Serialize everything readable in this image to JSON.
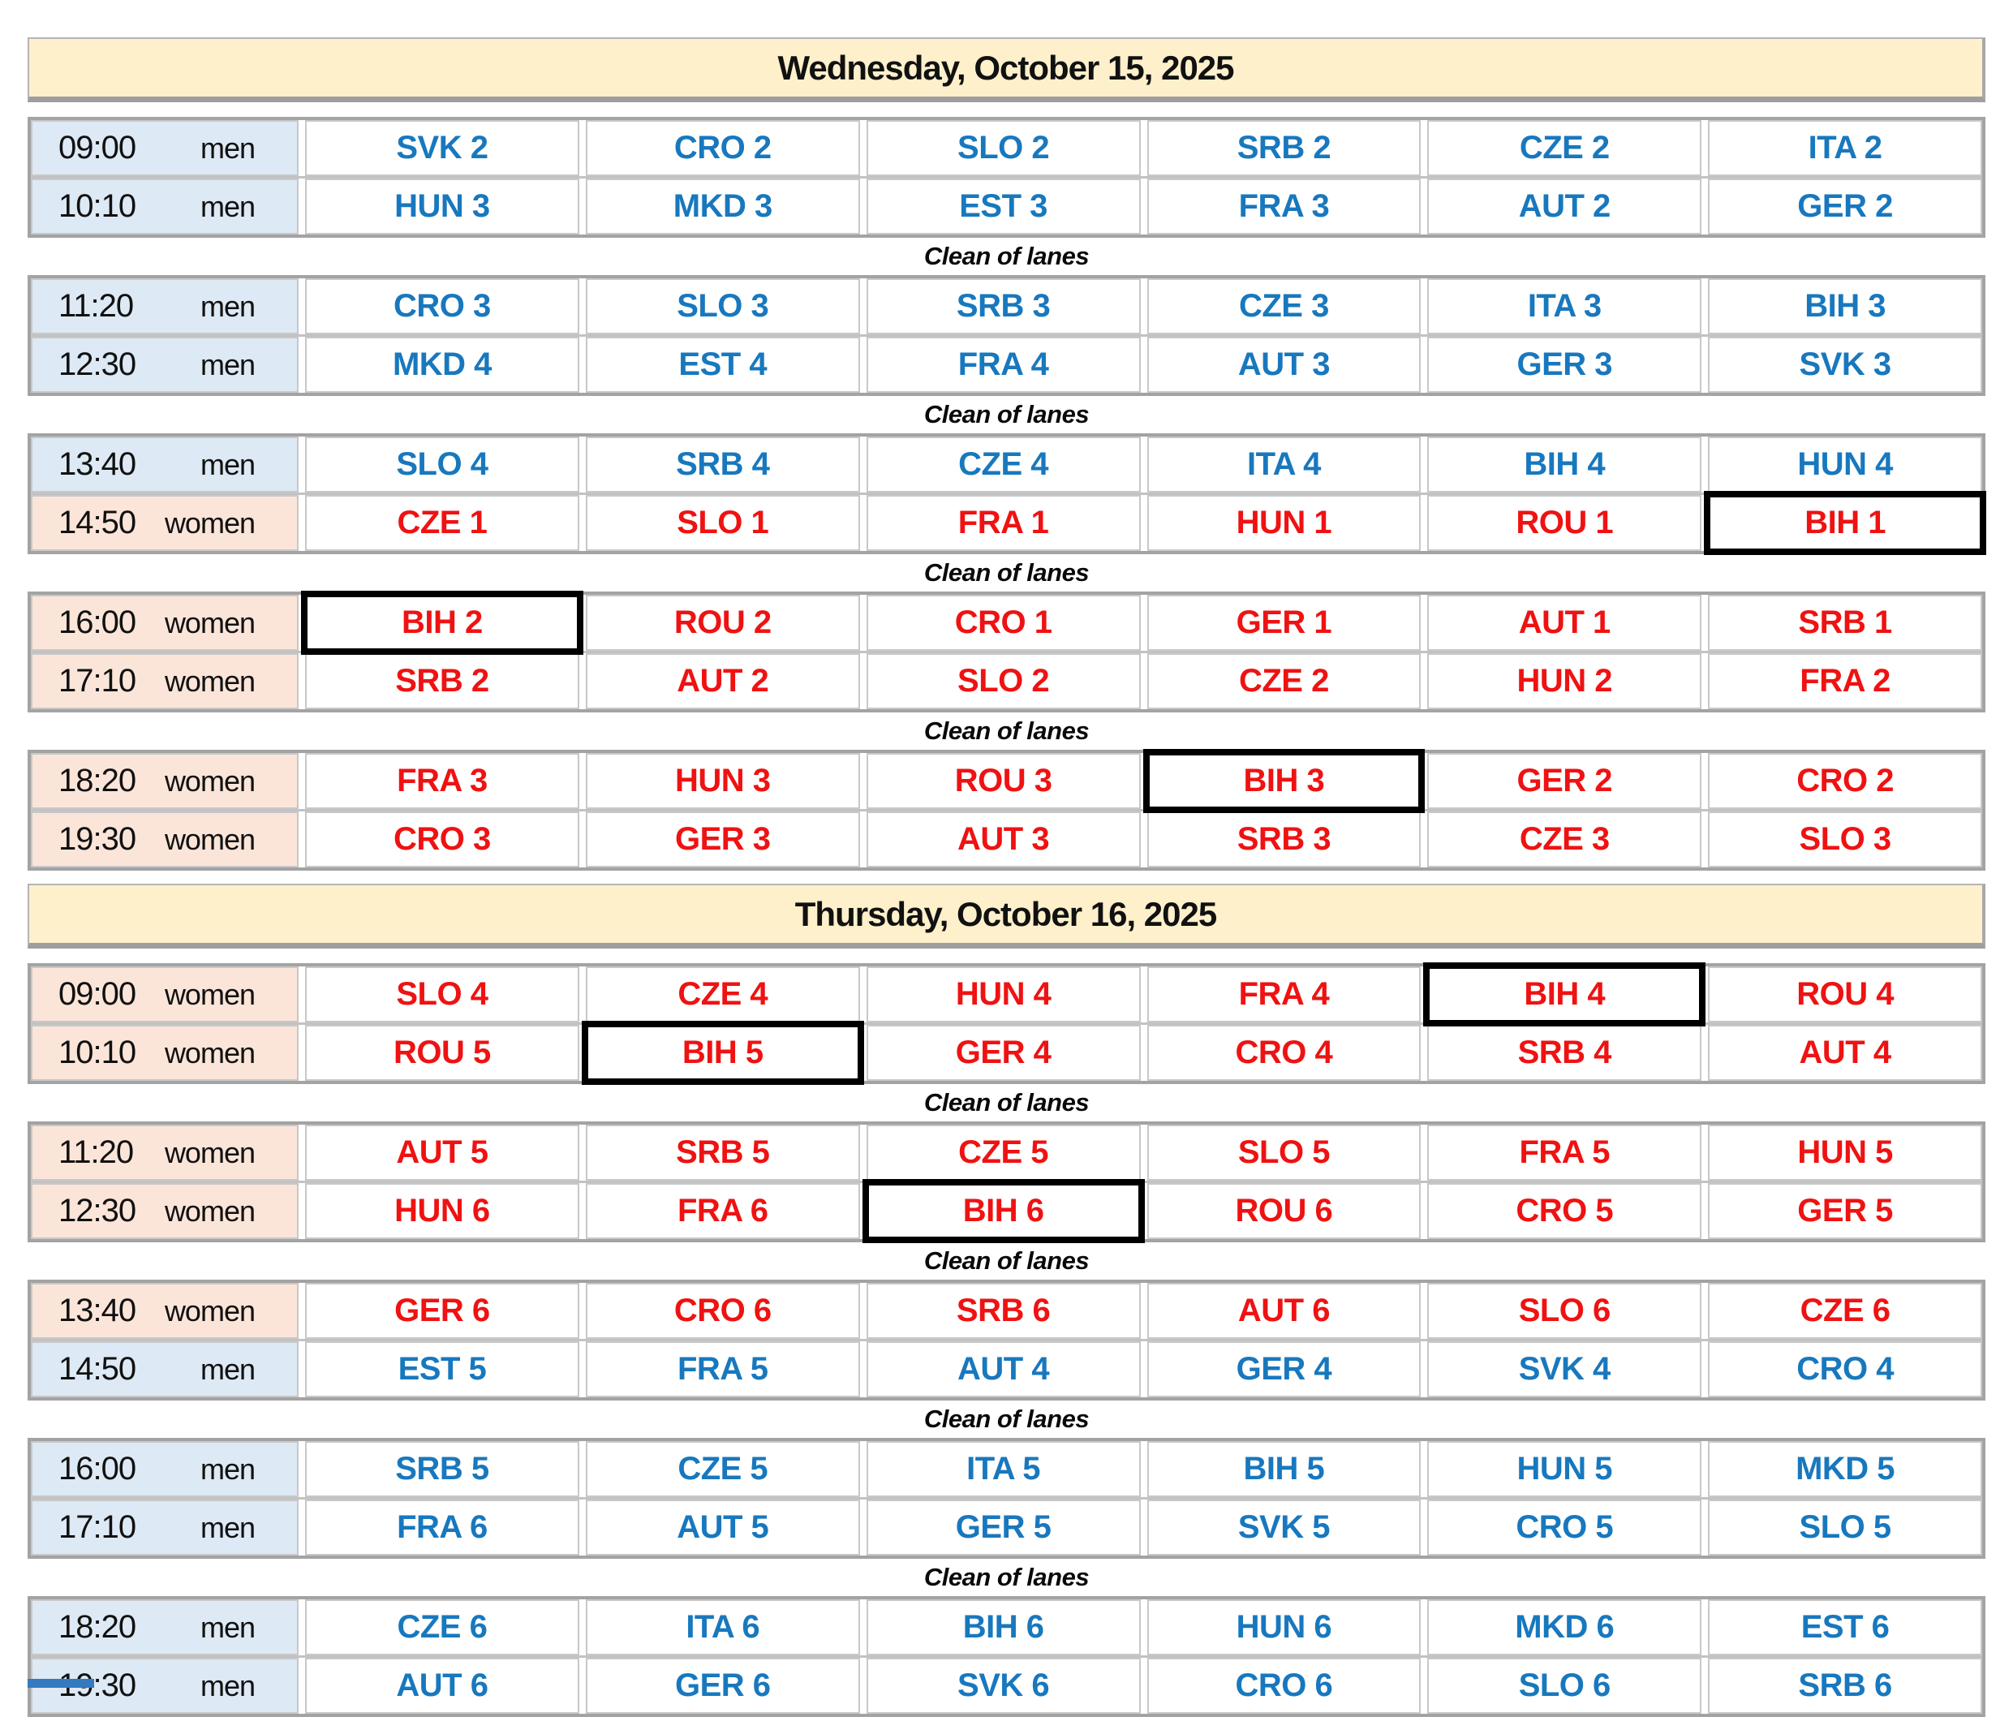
{
  "colors": {
    "header_bg": "#fdf0cb",
    "men_row_bg": "#dde9f4",
    "women_row_bg": "#fbe5d9",
    "men_text": "#1878be",
    "women_text": "#ef1212",
    "grid_border": "#c8c8c8",
    "block_border": "#a3a3a3",
    "highlight_border": "#000000",
    "partial_strip": "#3579bf"
  },
  "separator_label": "Clean of lanes",
  "days": [
    {
      "title": "Wednesday, October 15, 2025",
      "blocks": [
        {
          "rows": [
            {
              "time": "09:00",
              "gender": "men",
              "teams": [
                "SVK 2",
                "CRO 2",
                "SLO 2",
                "SRB 2",
                "CZE 2",
                "ITA 2"
              ],
              "highlights": []
            },
            {
              "time": "10:10",
              "gender": "men",
              "teams": [
                "HUN 3",
                "MKD 3",
                "EST 3",
                "FRA 3",
                "AUT 2",
                "GER 2"
              ],
              "highlights": []
            }
          ],
          "separator_after": true
        },
        {
          "rows": [
            {
              "time": "11:20",
              "gender": "men",
              "teams": [
                "CRO 3",
                "SLO 3",
                "SRB 3",
                "CZE 3",
                "ITA 3",
                "BIH 3"
              ],
              "highlights": []
            },
            {
              "time": "12:30",
              "gender": "men",
              "teams": [
                "MKD 4",
                "EST 4",
                "FRA 4",
                "AUT 3",
                "GER 3",
                "SVK 3"
              ],
              "highlights": []
            }
          ],
          "separator_after": true
        },
        {
          "rows": [
            {
              "time": "13:40",
              "gender": "men",
              "teams": [
                "SLO 4",
                "SRB 4",
                "CZE 4",
                "ITA 4",
                "BIH 4",
                "HUN 4"
              ],
              "highlights": []
            },
            {
              "time": "14:50",
              "gender": "women",
              "teams": [
                "CZE 1",
                "SLO 1",
                "FRA 1",
                "HUN 1",
                "ROU 1",
                "BIH 1"
              ],
              "highlights": [
                5
              ]
            }
          ],
          "separator_after": true
        },
        {
          "rows": [
            {
              "time": "16:00",
              "gender": "women",
              "teams": [
                "BIH 2",
                "ROU 2",
                "CRO 1",
                "GER 1",
                "AUT 1",
                "SRB 1"
              ],
              "highlights": [
                0
              ]
            },
            {
              "time": "17:10",
              "gender": "women",
              "teams": [
                "SRB 2",
                "AUT 2",
                "SLO 2",
                "CZE 2",
                "HUN 2",
                "FRA 2"
              ],
              "highlights": []
            }
          ],
          "separator_after": true
        },
        {
          "rows": [
            {
              "time": "18:20",
              "gender": "women",
              "teams": [
                "FRA 3",
                "HUN 3",
                "ROU 3",
                "BIH 3",
                "GER 2",
                "CRO 2"
              ],
              "highlights": [
                3
              ]
            },
            {
              "time": "19:30",
              "gender": "women",
              "teams": [
                "CRO 3",
                "GER 3",
                "AUT 3",
                "SRB 3",
                "CZE 3",
                "SLO 3"
              ],
              "highlights": []
            }
          ],
          "separator_after": false
        }
      ]
    },
    {
      "title": "Thursday, October 16, 2025",
      "blocks": [
        {
          "rows": [
            {
              "time": "09:00",
              "gender": "women",
              "teams": [
                "SLO 4",
                "CZE 4",
                "HUN 4",
                "FRA 4",
                "BIH 4",
                "ROU 4"
              ],
              "highlights": [
                4
              ]
            },
            {
              "time": "10:10",
              "gender": "women",
              "teams": [
                "ROU 5",
                "BIH 5",
                "GER 4",
                "CRO 4",
                "SRB 4",
                "AUT 4"
              ],
              "highlights": [
                1
              ]
            }
          ],
          "separator_after": true
        },
        {
          "rows": [
            {
              "time": "11:20",
              "gender": "women",
              "teams": [
                "AUT 5",
                "SRB 5",
                "CZE 5",
                "SLO 5",
                "FRA 5",
                "HUN 5"
              ],
              "highlights": []
            },
            {
              "time": "12:30",
              "gender": "women",
              "teams": [
                "HUN 6",
                "FRA 6",
                "BIH 6",
                "ROU 6",
                "CRO 5",
                "GER 5"
              ],
              "highlights": [
                2
              ]
            }
          ],
          "separator_after": true
        },
        {
          "rows": [
            {
              "time": "13:40",
              "gender": "women",
              "teams": [
                "GER 6",
                "CRO 6",
                "SRB 6",
                "AUT 6",
                "SLO 6",
                "CZE 6"
              ],
              "highlights": []
            },
            {
              "time": "14:50",
              "gender": "men",
              "teams": [
                "EST 5",
                "FRA 5",
                "AUT 4",
                "GER 4",
                "SVK 4",
                "CRO 4"
              ],
              "highlights": []
            }
          ],
          "separator_after": true
        },
        {
          "rows": [
            {
              "time": "16:00",
              "gender": "men",
              "teams": [
                "SRB 5",
                "CZE 5",
                "ITA 5",
                "BIH 5",
                "HUN 5",
                "MKD 5"
              ],
              "highlights": []
            },
            {
              "time": "17:10",
              "gender": "men",
              "teams": [
                "FRA 6",
                "AUT 5",
                "GER 5",
                "SVK 5",
                "CRO 5",
                "SLO 5"
              ],
              "highlights": []
            }
          ],
          "separator_after": true
        },
        {
          "rows": [
            {
              "time": "18:20",
              "gender": "men",
              "teams": [
                "CZE 6",
                "ITA 6",
                "BIH 6",
                "HUN 6",
                "MKD 6",
                "EST 6"
              ],
              "highlights": []
            },
            {
              "time": "19:30",
              "gender": "men",
              "teams": [
                "AUT 6",
                "GER 6",
                "SVK 6",
                "CRO 6",
                "SLO 6",
                "SRB 6"
              ],
              "highlights": []
            }
          ],
          "separator_after": false
        }
      ]
    }
  ]
}
